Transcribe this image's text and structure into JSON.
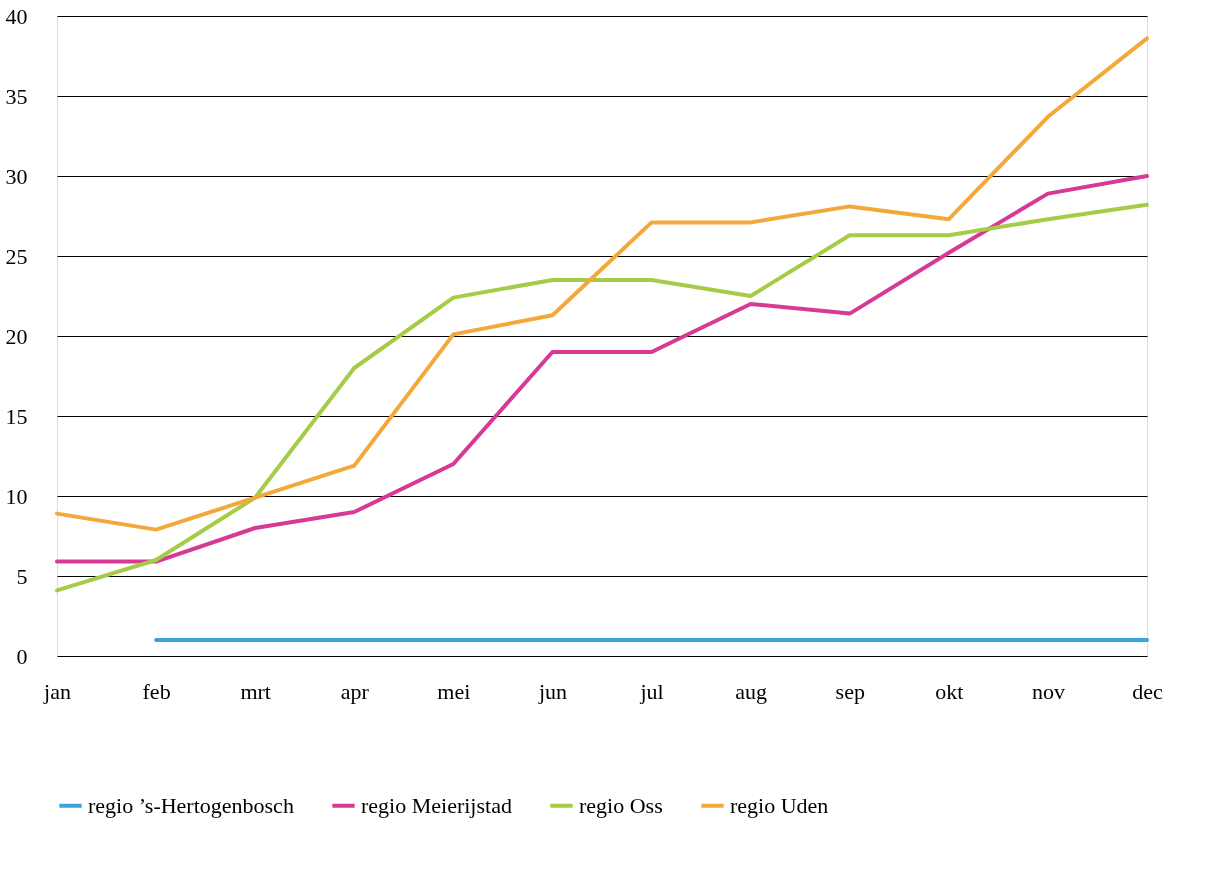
{
  "chart_data": {
    "type": "line",
    "categories": [
      "jan",
      "feb",
      "mrt",
      "apr",
      "mei",
      "jun",
      "jul",
      "aug",
      "sep",
      "okt",
      "nov",
      "dec"
    ],
    "series": [
      {
        "name": "regio ’s-Hertogenbosch",
        "color": "#3aa3dc",
        "values": [
          null,
          1,
          1,
          1,
          1,
          1,
          1,
          1,
          1,
          1,
          1,
          1
        ]
      },
      {
        "name": "regio Meierijstad",
        "color": "#d63a96",
        "values": [
          5.9,
          5.9,
          8.0,
          9.0,
          12.0,
          19.0,
          19.0,
          22.0,
          21.4,
          25.2,
          28.9,
          30.0
        ]
      },
      {
        "name": "regio Oss",
        "color": "#a6cc47",
        "values": [
          4.1,
          6.0,
          9.9,
          18.0,
          22.4,
          23.5,
          23.5,
          22.5,
          26.3,
          26.3,
          27.3,
          28.2
        ]
      },
      {
        "name": "regio Uden",
        "color": "#f4a83a",
        "values": [
          8.9,
          7.9,
          9.9,
          11.9,
          20.1,
          21.3,
          27.1,
          27.1,
          28.1,
          27.3,
          33.7,
          38.6
        ]
      }
    ],
    "ylim": [
      0,
      40
    ],
    "yticks": [
      0,
      5,
      10,
      15,
      20,
      25,
      30,
      35,
      40
    ],
    "grid": "y",
    "legend": "bottom",
    "marker": "none",
    "line_style": "solid"
  }
}
